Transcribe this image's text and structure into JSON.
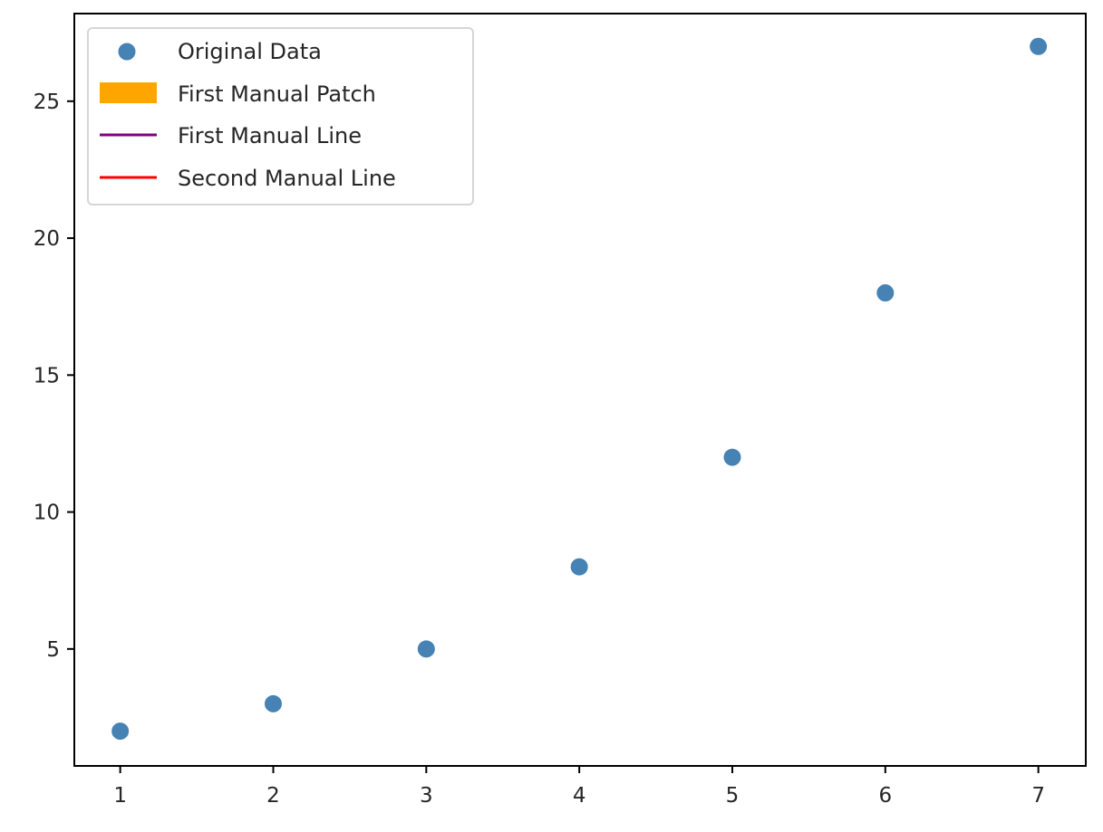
{
  "chart_data": {
    "type": "scatter",
    "title": "",
    "xlabel": "",
    "ylabel": "",
    "x": [
      1,
      2,
      3,
      4,
      5,
      6,
      7
    ],
    "series": [
      {
        "name": "Original Data",
        "values": [
          2,
          3,
          5,
          8,
          12,
          18,
          27
        ],
        "color": "#4682B4",
        "marker": "circle"
      }
    ],
    "xlim": [
      0.7,
      7.31
    ],
    "ylim": [
      0.73,
      28.2
    ],
    "xticks": [
      1,
      2,
      3,
      4,
      5,
      6,
      7
    ],
    "yticks": [
      5,
      10,
      15,
      20,
      25
    ],
    "grid": false,
    "legend": {
      "position": "upper left",
      "entries": [
        {
          "label": "Original Data",
          "type": "marker",
          "color": "#4682B4"
        },
        {
          "label": "First Manual Patch",
          "type": "patch",
          "color": "#FFA500"
        },
        {
          "label": "First Manual Line",
          "type": "line",
          "color": "#800080"
        },
        {
          "label": "Second Manual Line",
          "type": "line",
          "color": "#FF0000"
        }
      ]
    }
  },
  "axes": {
    "x_tick_labels": [
      "1",
      "2",
      "3",
      "4",
      "5",
      "6",
      "7"
    ],
    "y_tick_labels": [
      "5",
      "10",
      "15",
      "20",
      "25"
    ]
  }
}
